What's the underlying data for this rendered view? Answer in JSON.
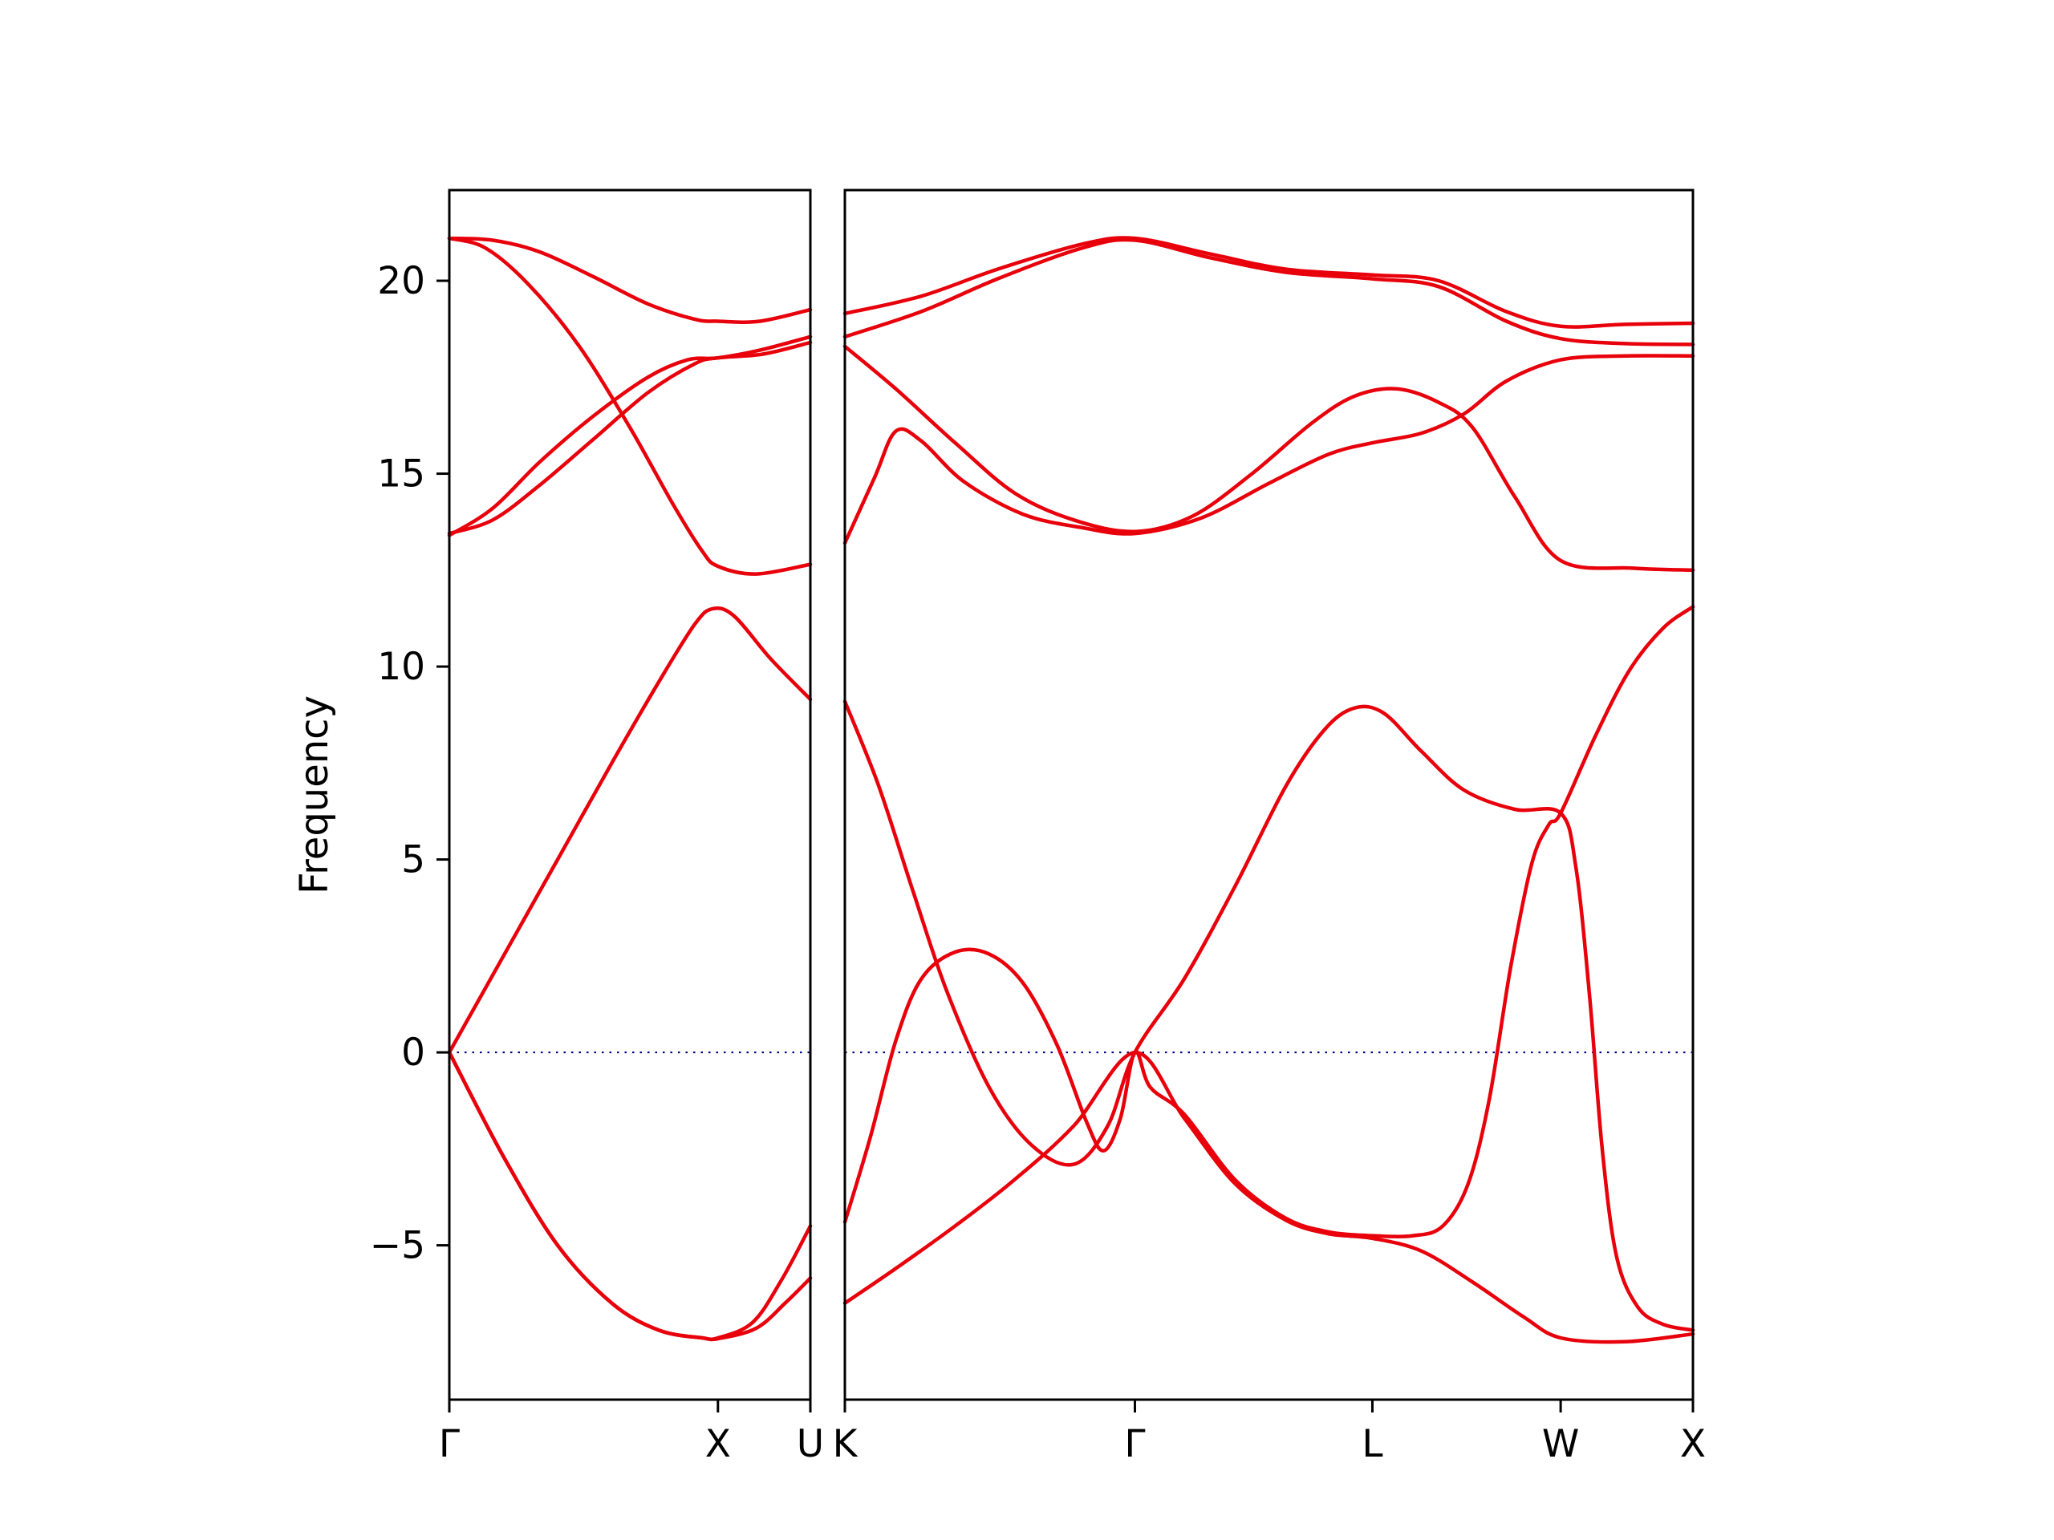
{
  "figure": {
    "background": "#ffffff",
    "band_color": "#e8000b",
    "zero_line_color": "#000080",
    "axis_color": "#000000"
  },
  "chart_data": {
    "type": "line",
    "title": "",
    "ylabel": "Frequency",
    "ylim": [
      -9.0,
      22.35
    ],
    "grid": false,
    "legend": "none",
    "yticks": [
      {
        "value": 20,
        "label": "20"
      },
      {
        "value": 15,
        "label": "15"
      },
      {
        "value": 10,
        "label": "10"
      },
      {
        "value": 5,
        "label": "5"
      },
      {
        "value": 0,
        "label": "0"
      },
      {
        "value": -5,
        "label": "−5"
      }
    ],
    "zero_line": 0,
    "panels": [
      {
        "name": "left",
        "path": "Gamma-X-U",
        "xticks": [
          {
            "label": "Γ",
            "pos": 0.0
          },
          {
            "label": "X",
            "pos": 0.744
          },
          {
            "label": "U",
            "pos": 1.0
          }
        ],
        "bands": [
          [
            [
              0,
              21.1
            ],
            [
              0.12,
              21.05
            ],
            [
              0.25,
              20.75
            ],
            [
              0.4,
              20.1
            ],
            [
              0.55,
              19.4
            ],
            [
              0.68,
              19.0
            ],
            [
              0.744,
              18.95
            ],
            [
              0.86,
              18.95
            ],
            [
              1,
              19.25
            ]
          ],
          [
            [
              0,
              21.1
            ],
            [
              0.1,
              20.85
            ],
            [
              0.22,
              19.9
            ],
            [
              0.36,
              18.3
            ],
            [
              0.5,
              16.2
            ],
            [
              0.62,
              14.2
            ],
            [
              0.7,
              13.0
            ],
            [
              0.744,
              12.6
            ],
            [
              0.85,
              12.4
            ],
            [
              1,
              12.65
            ]
          ],
          [
            [
              0,
              13.45
            ],
            [
              0.12,
              13.8
            ],
            [
              0.25,
              14.7
            ],
            [
              0.4,
              15.9
            ],
            [
              0.55,
              17.1
            ],
            [
              0.68,
              17.85
            ],
            [
              0.744,
              18.0
            ],
            [
              0.87,
              18.1
            ],
            [
              1,
              18.4
            ]
          ],
          [
            [
              0,
              13.4
            ],
            [
              0.12,
              14.1
            ],
            [
              0.25,
              15.3
            ],
            [
              0.4,
              16.5
            ],
            [
              0.55,
              17.5
            ],
            [
              0.66,
              17.95
            ],
            [
              0.744,
              18.0
            ],
            [
              0.86,
              18.2
            ],
            [
              1,
              18.55
            ]
          ],
          [
            [
              0,
              0
            ],
            [
              0.15,
              2.5
            ],
            [
              0.3,
              5.0
            ],
            [
              0.45,
              7.5
            ],
            [
              0.58,
              9.6
            ],
            [
              0.68,
              11.1
            ],
            [
              0.73,
              11.5
            ],
            [
              0.79,
              11.3
            ],
            [
              0.89,
              10.2
            ],
            [
              1,
              9.15
            ]
          ],
          [
            [
              0,
              0
            ],
            [
              0.15,
              -2.7
            ],
            [
              0.3,
              -5.0
            ],
            [
              0.45,
              -6.5
            ],
            [
              0.58,
              -7.2
            ],
            [
              0.7,
              -7.4
            ],
            [
              0.744,
              -7.4
            ],
            [
              0.84,
              -7.0
            ],
            [
              0.92,
              -5.9
            ],
            [
              1,
              -4.5
            ]
          ],
          [
            [
              0,
              0
            ],
            [
              0.15,
              -2.7
            ],
            [
              0.3,
              -5.0
            ],
            [
              0.45,
              -6.5
            ],
            [
              0.58,
              -7.2
            ],
            [
              0.7,
              -7.4
            ],
            [
              0.744,
              -7.42
            ],
            [
              0.85,
              -7.15
            ],
            [
              0.93,
              -6.5
            ],
            [
              1,
              -5.85
            ]
          ]
        ]
      },
      {
        "name": "right",
        "path": "K-Gamma-L-W-X",
        "xticks": [
          {
            "label": "K",
            "pos": 0.0
          },
          {
            "label": "Γ",
            "pos": 0.342
          },
          {
            "label": "L",
            "pos": 0.622
          },
          {
            "label": "W",
            "pos": 0.844
          },
          {
            "label": "X",
            "pos": 1.0
          }
        ],
        "bands": [
          [
            [
              0,
              19.15
            ],
            [
              0.09,
              19.6
            ],
            [
              0.18,
              20.3
            ],
            [
              0.28,
              20.95
            ],
            [
              0.342,
              21.1
            ],
            [
              0.43,
              20.7
            ],
            [
              0.52,
              20.3
            ],
            [
              0.622,
              20.15
            ],
            [
              0.7,
              20.0
            ],
            [
              0.78,
              19.2
            ],
            [
              0.844,
              18.82
            ],
            [
              0.92,
              18.87
            ],
            [
              1,
              18.9
            ]
          ],
          [
            [
              0,
              18.55
            ],
            [
              0.09,
              19.2
            ],
            [
              0.18,
              20.05
            ],
            [
              0.28,
              20.85
            ],
            [
              0.342,
              21.05
            ],
            [
              0.43,
              20.6
            ],
            [
              0.52,
              20.22
            ],
            [
              0.622,
              20.05
            ],
            [
              0.7,
              19.85
            ],
            [
              0.78,
              18.95
            ],
            [
              0.844,
              18.5
            ],
            [
              0.92,
              18.37
            ],
            [
              1,
              18.35
            ]
          ],
          [
            [
              0,
              18.3
            ],
            [
              0.06,
              17.2
            ],
            [
              0.13,
              15.8
            ],
            [
              0.2,
              14.5
            ],
            [
              0.27,
              13.8
            ],
            [
              0.342,
              13.5
            ],
            [
              0.41,
              13.9
            ],
            [
              0.48,
              15.0
            ],
            [
              0.55,
              16.3
            ],
            [
              0.6,
              17.0
            ],
            [
              0.65,
              17.2
            ],
            [
              0.7,
              16.85
            ],
            [
              0.74,
              16.2
            ],
            [
              0.79,
              14.4
            ],
            [
              0.844,
              12.75
            ],
            [
              0.93,
              12.55
            ],
            [
              1,
              12.5
            ]
          ],
          [
            [
              0,
              13.2
            ],
            [
              0.035,
              14.9
            ],
            [
              0.06,
              16.1
            ],
            [
              0.09,
              15.85
            ],
            [
              0.14,
              14.8
            ],
            [
              0.21,
              13.95
            ],
            [
              0.28,
              13.6
            ],
            [
              0.342,
              13.45
            ],
            [
              0.42,
              13.85
            ],
            [
              0.5,
              14.75
            ],
            [
              0.57,
              15.5
            ],
            [
              0.622,
              15.8
            ],
            [
              0.68,
              16.05
            ],
            [
              0.73,
              16.55
            ],
            [
              0.78,
              17.4
            ],
            [
              0.844,
              17.95
            ],
            [
              0.92,
              18.05
            ],
            [
              1,
              18.05
            ]
          ],
          [
            [
              0,
              9.1
            ],
            [
              0.04,
              6.9
            ],
            [
              0.08,
              4.2
            ],
            [
              0.12,
              1.6
            ],
            [
              0.17,
              -0.9
            ],
            [
              0.22,
              -2.4
            ],
            [
              0.27,
              -2.9
            ],
            [
              0.31,
              -1.9
            ],
            [
              0.342,
              0
            ],
            [
              0.4,
              1.9
            ],
            [
              0.46,
              4.3
            ],
            [
              0.52,
              6.9
            ],
            [
              0.565,
              8.35
            ],
            [
              0.6,
              8.92
            ],
            [
              0.635,
              8.8
            ],
            [
              0.68,
              7.8
            ],
            [
              0.73,
              6.8
            ],
            [
              0.79,
              6.3
            ],
            [
              0.844,
              6.2
            ],
            [
              0.862,
              4.8
            ],
            [
              0.878,
              1.5
            ],
            [
              0.893,
              -2.5
            ],
            [
              0.91,
              -5.3
            ],
            [
              0.935,
              -6.6
            ],
            [
              0.965,
              -7.05
            ],
            [
              1,
              -7.2
            ]
          ],
          [
            [
              0,
              -4.4
            ],
            [
              0.03,
              -2.2
            ],
            [
              0.06,
              0.3
            ],
            [
              0.09,
              1.9
            ],
            [
              0.13,
              2.6
            ],
            [
              0.17,
              2.55
            ],
            [
              0.21,
              1.8
            ],
            [
              0.25,
              0.2
            ],
            [
              0.285,
              -1.8
            ],
            [
              0.305,
              -2.55
            ],
            [
              0.325,
              -1.7
            ],
            [
              0.342,
              0
            ],
            [
              0.36,
              -0.9
            ],
            [
              0.4,
              -1.6
            ],
            [
              0.46,
              -3.3
            ],
            [
              0.52,
              -4.3
            ],
            [
              0.57,
              -4.65
            ],
            [
              0.622,
              -4.75
            ],
            [
              0.67,
              -4.75
            ],
            [
              0.705,
              -4.5
            ],
            [
              0.735,
              -3.4
            ],
            [
              0.76,
              -1.2
            ],
            [
              0.785,
              2.2
            ],
            [
              0.81,
              4.9
            ],
            [
              0.83,
              5.9
            ],
            [
              0.844,
              6.2
            ],
            [
              0.885,
              8.2
            ],
            [
              0.925,
              9.9
            ],
            [
              0.965,
              11.0
            ],
            [
              1,
              11.55
            ]
          ],
          [
            [
              0,
              -6.5
            ],
            [
              0.06,
              -5.6
            ],
            [
              0.13,
              -4.5
            ],
            [
              0.2,
              -3.3
            ],
            [
              0.27,
              -1.9
            ],
            [
              0.342,
              0
            ],
            [
              0.4,
              -1.7
            ],
            [
              0.46,
              -3.4
            ],
            [
              0.52,
              -4.35
            ],
            [
              0.57,
              -4.7
            ],
            [
              0.622,
              -4.82
            ],
            [
              0.68,
              -5.15
            ],
            [
              0.74,
              -5.95
            ],
            [
              0.8,
              -6.85
            ],
            [
              0.844,
              -7.4
            ],
            [
              0.92,
              -7.5
            ],
            [
              1,
              -7.3
            ]
          ]
        ]
      }
    ]
  }
}
